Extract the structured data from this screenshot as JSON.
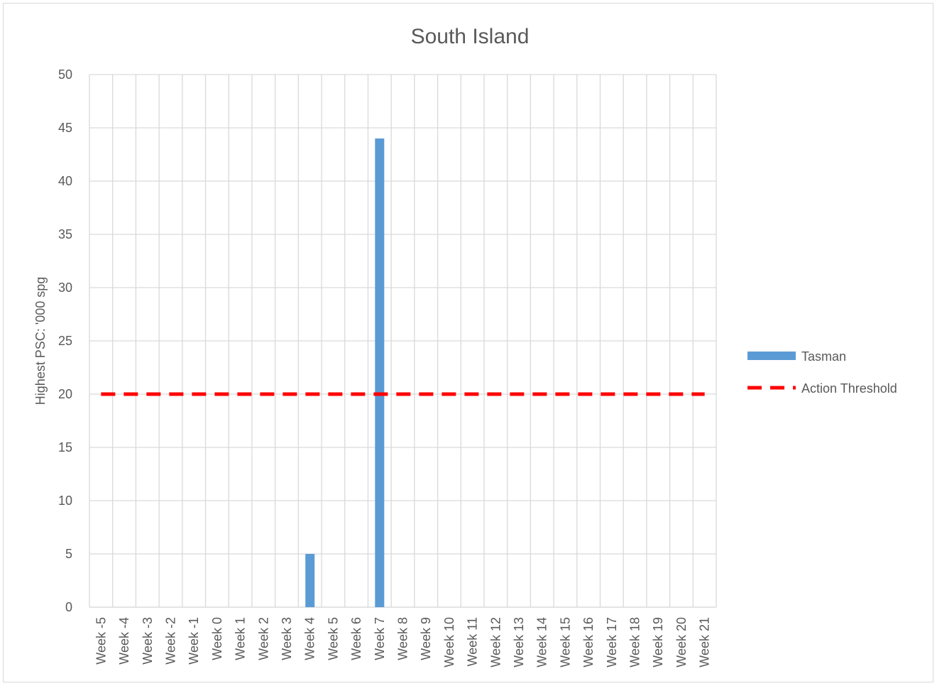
{
  "chart_data": {
    "type": "bar",
    "title": "South Island",
    "ylabel": "Highest PSC: '000 spg",
    "xlabel": "",
    "ylim": [
      0,
      50
    ],
    "yticks": [
      0,
      5,
      10,
      15,
      20,
      25,
      30,
      35,
      40,
      45,
      50
    ],
    "grid": true,
    "legend_position": "right",
    "categories": [
      "Week -5",
      "Week -4",
      "Week -3",
      "Week -2",
      "Week -1",
      "Week 0",
      "Week 1",
      "Week 2",
      "Week 3",
      "Week 4",
      "Week 5",
      "Week 6",
      "Week 7",
      "Week 8",
      "Week 9",
      "Week 10",
      "Week 11",
      "Week 12",
      "Week 13",
      "Week 14",
      "Week 15",
      "Week 16",
      "Week 17",
      "Week 18",
      "Week 19",
      "Week 20",
      "Week 21"
    ],
    "series": [
      {
        "name": "Tasman",
        "type": "bar",
        "color": "#5b9bd5",
        "values": [
          null,
          null,
          null,
          null,
          null,
          null,
          null,
          null,
          null,
          5,
          null,
          null,
          44,
          null,
          null,
          null,
          null,
          null,
          null,
          null,
          null,
          null,
          null,
          null,
          null,
          null,
          null
        ]
      },
      {
        "name": "Action Threshold",
        "type": "line",
        "style": "dashed",
        "color": "#ff0000",
        "values": [
          20,
          20,
          20,
          20,
          20,
          20,
          20,
          20,
          20,
          20,
          20,
          20,
          20,
          20,
          20,
          20,
          20,
          20,
          20,
          20,
          20,
          20,
          20,
          20,
          20,
          20,
          20
        ]
      }
    ]
  }
}
